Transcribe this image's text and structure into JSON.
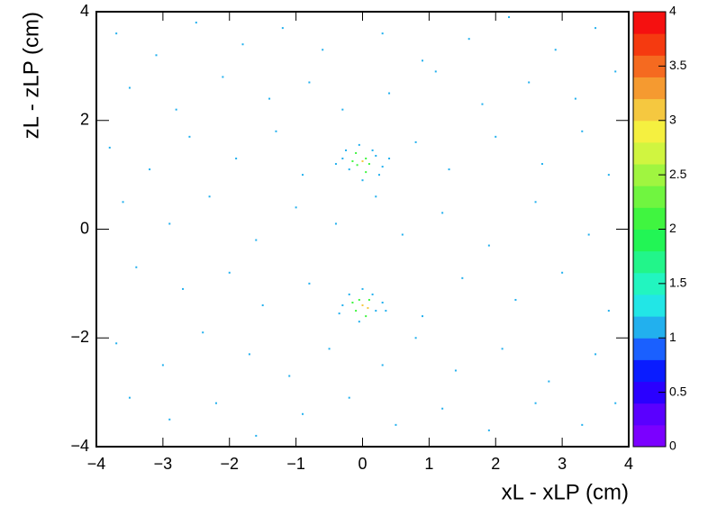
{
  "chart_data": {
    "type": "heatmap",
    "xlabel": "xL - xLP (cm)",
    "ylabel": "zL - zLP (cm)",
    "xlim": [
      -4,
      4
    ],
    "ylim": [
      -4,
      4
    ],
    "zlim": [
      0,
      4
    ],
    "xticks": [
      {
        "value": -4,
        "label": "−4"
      },
      {
        "value": -3,
        "label": "−3"
      },
      {
        "value": -2,
        "label": "−2"
      },
      {
        "value": -1,
        "label": "−1"
      },
      0,
      1,
      2,
      3,
      4
    ],
    "yticks": [
      {
        "value": -4,
        "label": "−4"
      },
      {
        "value": -2,
        "label": "−2"
      },
      0,
      2,
      4
    ],
    "zticks": [
      0,
      0.5,
      1,
      1.5,
      2,
      2.5,
      3,
      3.5,
      4
    ],
    "palette": [
      "#7b00ff",
      "#5a00ff",
      "#2a00ff",
      "#0a1cff",
      "#1a60ff",
      "#22b0ee",
      "#22e6e6",
      "#22f5c0",
      "#22f58a",
      "#22f555",
      "#40f540",
      "#70f540",
      "#a0f540",
      "#d0f540",
      "#f5f040",
      "#f5c840",
      "#f59a30",
      "#f56a20",
      "#f53a10",
      "#f51010"
    ],
    "x": [
      -3.7,
      -3.1,
      -2.5,
      -1.8,
      -1.2,
      -0.6,
      0.3,
      0.9,
      1.6,
      2.2,
      2.9,
      3.5,
      -3.5,
      -2.8,
      -2.1,
      -1.4,
      -0.8,
      -0.3,
      0.4,
      1.1,
      1.8,
      2.5,
      3.2,
      3.8,
      -3.8,
      -3.2,
      -2.6,
      -1.9,
      -1.3,
      -0.9,
      0.8,
      1.3,
      2.0,
      2.7,
      3.3,
      3.7,
      -3.6,
      -2.9,
      -2.3,
      -1.6,
      -1.0,
      -0.4,
      0.2,
      0.6,
      1.2,
      1.9,
      2.6,
      3.4,
      -3.4,
      -2.7,
      -2.0,
      -1.5,
      -0.8,
      0.9,
      1.5,
      2.3,
      3.0,
      3.7,
      -3.7,
      -3.0,
      -2.4,
      -1.7,
      -1.1,
      -0.5,
      0.3,
      0.8,
      1.4,
      2.1,
      2.8,
      3.5,
      -3.5,
      -2.9,
      -2.2,
      -1.6,
      -0.9,
      -0.2,
      0.5,
      1.2,
      1.9,
      2.6,
      3.3,
      3.8,
      -0.3,
      -0.2,
      -0.1,
      0.0,
      0.1,
      0.2,
      0.3,
      -0.15,
      0.05,
      0.15,
      -0.25,
      0.25,
      -0.05,
      0.0,
      -0.4,
      0.4,
      0.05,
      -0.08,
      -0.3,
      -0.2,
      -0.1,
      0.0,
      0.1,
      0.2,
      0.3,
      -0.15,
      0.05,
      0.15,
      -0.05,
      0.0,
      -0.35,
      0.35,
      0.08,
      -0.05
    ],
    "y": [
      3.6,
      3.2,
      3.8,
      3.4,
      3.7,
      3.3,
      3.6,
      3.1,
      3.5,
      3.9,
      3.3,
      3.7,
      2.6,
      2.2,
      2.8,
      2.4,
      2.7,
      2.2,
      2.5,
      2.9,
      2.3,
      2.7,
      2.4,
      2.9,
      1.5,
      1.1,
      1.7,
      1.3,
      1.8,
      1.0,
      1.6,
      1.1,
      1.7,
      1.2,
      1.8,
      1.0,
      0.5,
      0.1,
      0.6,
      -0.2,
      0.4,
      0.1,
      0.6,
      -0.1,
      0.3,
      -0.3,
      0.5,
      -0.1,
      -0.7,
      -1.1,
      -0.8,
      -1.4,
      -1.0,
      -1.6,
      -0.9,
      -1.3,
      -0.8,
      -1.5,
      -2.1,
      -2.5,
      -1.9,
      -2.3,
      -2.7,
      -2.2,
      -2.5,
      -2.0,
      -2.6,
      -2.2,
      -2.8,
      -2.3,
      -3.1,
      -3.5,
      -3.2,
      -3.8,
      -3.4,
      -3.1,
      -3.6,
      -3.3,
      -3.7,
      -3.2,
      -3.6,
      -3.2,
      1.3,
      1.1,
      1.4,
      1.25,
      1.2,
      1.35,
      1.15,
      1.25,
      1.05,
      1.45,
      1.45,
      1.0,
      1.55,
      0.9,
      1.2,
      1.3,
      1.3,
      1.18,
      -1.4,
      -1.2,
      -1.5,
      -1.4,
      -1.3,
      -1.5,
      -1.35,
      -1.35,
      -1.6,
      -1.2,
      -1.7,
      -1.1,
      -1.55,
      -1.5,
      -1.45,
      -1.3
    ],
    "values": [
      1,
      1,
      1,
      1,
      1,
      1,
      1,
      1,
      1,
      1,
      1,
      1,
      1,
      1,
      1,
      1,
      1,
      1,
      1,
      1,
      1,
      1,
      1,
      1,
      1,
      1,
      1,
      1,
      1,
      1,
      1,
      1,
      1,
      1,
      1,
      1,
      1,
      1,
      1,
      1,
      1,
      1,
      1,
      1,
      1,
      1,
      1,
      1,
      1,
      1,
      1,
      1,
      1,
      1,
      1,
      1,
      1,
      1,
      1,
      1,
      1,
      1,
      1,
      1,
      1,
      1,
      1,
      1,
      1,
      1,
      1,
      1,
      1,
      1,
      1,
      1,
      1,
      1,
      1,
      1,
      1,
      1,
      1,
      1,
      2,
      3,
      2,
      1,
      1,
      2,
      2,
      1,
      1,
      1,
      1,
      1,
      1,
      1,
      2,
      2,
      1,
      1,
      2,
      3,
      2,
      1,
      1,
      2,
      2,
      1,
      1,
      1,
      1,
      1,
      3,
      2
    ]
  }
}
